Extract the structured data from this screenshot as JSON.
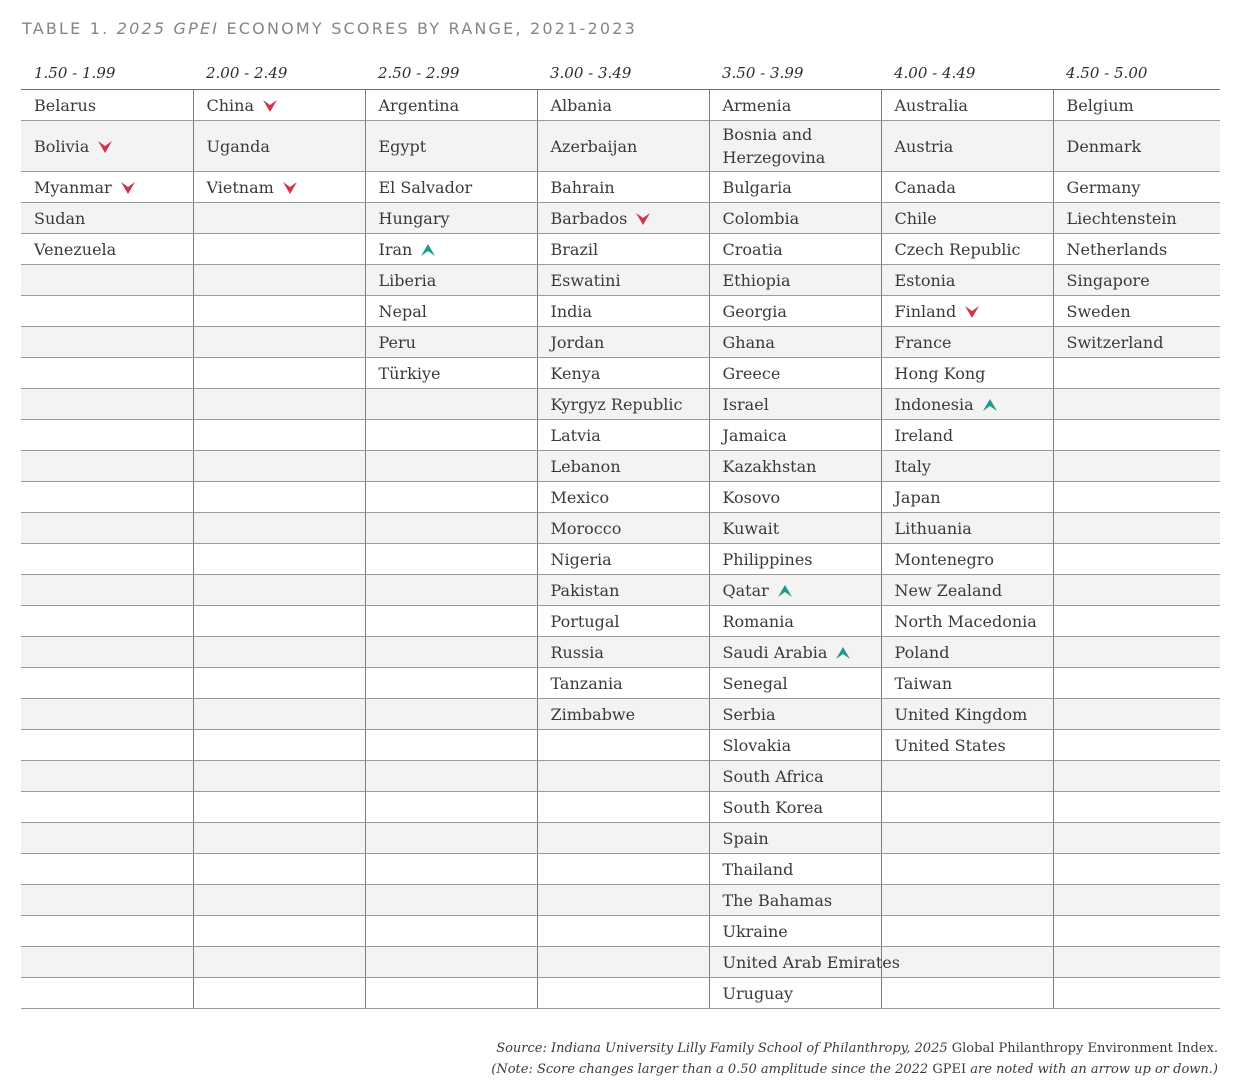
{
  "title": {
    "prefix": "TABLE 1. ",
    "italic": "2025 GPEI",
    "suffix": " ECONOMY SCORES BY RANGE, 2021-2023"
  },
  "colors": {
    "down_arrow": "#d0334e",
    "up_arrow": "#1f9a8a",
    "stripe": "#f3f3f3"
  },
  "icons": {
    "down": "down-arrow-icon",
    "up": "up-arrow-icon"
  },
  "table": {
    "headers": [
      "1.50 - 1.99",
      "2.00 - 2.49",
      "2.50 - 2.99",
      "3.00 - 3.49",
      "3.50 - 3.99",
      "4.00 - 4.49",
      "4.50 - 5.00"
    ],
    "rows": [
      [
        {
          "name": "Belarus"
        },
        {
          "name": "China",
          "change": "down"
        },
        {
          "name": "Argentina"
        },
        {
          "name": "Albania"
        },
        {
          "name": "Armenia"
        },
        {
          "name": "Australia"
        },
        {
          "name": "Belgium"
        }
      ],
      [
        {
          "name": "Bolivia",
          "change": "down"
        },
        {
          "name": "Uganda"
        },
        {
          "name": "Egypt"
        },
        {
          "name": "Azerbaijan"
        },
        {
          "name": "Bosnia and Herzegovina"
        },
        {
          "name": "Austria"
        },
        {
          "name": "Denmark"
        }
      ],
      [
        {
          "name": "Myanmar",
          "change": "down"
        },
        {
          "name": "Vietnam",
          "change": "down"
        },
        {
          "name": "El Salvador"
        },
        {
          "name": "Bahrain"
        },
        {
          "name": "Bulgaria"
        },
        {
          "name": "Canada"
        },
        {
          "name": "Germany"
        }
      ],
      [
        {
          "name": "Sudan"
        },
        {
          "name": ""
        },
        {
          "name": "Hungary"
        },
        {
          "name": "Barbados",
          "change": "down"
        },
        {
          "name": "Colombia"
        },
        {
          "name": "Chile"
        },
        {
          "name": "Liechtenstein"
        }
      ],
      [
        {
          "name": "Venezuela"
        },
        {
          "name": ""
        },
        {
          "name": "Iran",
          "change": "up"
        },
        {
          "name": "Brazil"
        },
        {
          "name": "Croatia"
        },
        {
          "name": "Czech Republic"
        },
        {
          "name": "Netherlands"
        }
      ],
      [
        {
          "name": ""
        },
        {
          "name": ""
        },
        {
          "name": "Liberia"
        },
        {
          "name": "Eswatini"
        },
        {
          "name": "Ethiopia"
        },
        {
          "name": "Estonia"
        },
        {
          "name": "Singapore"
        }
      ],
      [
        {
          "name": ""
        },
        {
          "name": ""
        },
        {
          "name": "Nepal"
        },
        {
          "name": "India"
        },
        {
          "name": "Georgia"
        },
        {
          "name": "Finland",
          "change": "down"
        },
        {
          "name": "Sweden"
        }
      ],
      [
        {
          "name": ""
        },
        {
          "name": ""
        },
        {
          "name": "Peru"
        },
        {
          "name": "Jordan"
        },
        {
          "name": "Ghana"
        },
        {
          "name": "France"
        },
        {
          "name": "Switzerland"
        }
      ],
      [
        {
          "name": ""
        },
        {
          "name": ""
        },
        {
          "name": "Türkiye"
        },
        {
          "name": "Kenya"
        },
        {
          "name": "Greece"
        },
        {
          "name": "Hong Kong"
        },
        {
          "name": ""
        }
      ],
      [
        {
          "name": ""
        },
        {
          "name": ""
        },
        {
          "name": ""
        },
        {
          "name": "Kyrgyz Republic"
        },
        {
          "name": "Israel"
        },
        {
          "name": "Indonesia",
          "change": "up"
        },
        {
          "name": ""
        }
      ],
      [
        {
          "name": ""
        },
        {
          "name": ""
        },
        {
          "name": ""
        },
        {
          "name": "Latvia"
        },
        {
          "name": "Jamaica"
        },
        {
          "name": "Ireland"
        },
        {
          "name": ""
        }
      ],
      [
        {
          "name": ""
        },
        {
          "name": ""
        },
        {
          "name": ""
        },
        {
          "name": "Lebanon"
        },
        {
          "name": "Kazakhstan"
        },
        {
          "name": "Italy"
        },
        {
          "name": ""
        }
      ],
      [
        {
          "name": ""
        },
        {
          "name": ""
        },
        {
          "name": ""
        },
        {
          "name": "Mexico"
        },
        {
          "name": "Kosovo"
        },
        {
          "name": "Japan"
        },
        {
          "name": ""
        }
      ],
      [
        {
          "name": ""
        },
        {
          "name": ""
        },
        {
          "name": ""
        },
        {
          "name": "Morocco"
        },
        {
          "name": "Kuwait"
        },
        {
          "name": "Lithuania"
        },
        {
          "name": ""
        }
      ],
      [
        {
          "name": ""
        },
        {
          "name": ""
        },
        {
          "name": ""
        },
        {
          "name": "Nigeria"
        },
        {
          "name": "Philippines"
        },
        {
          "name": "Montenegro"
        },
        {
          "name": ""
        }
      ],
      [
        {
          "name": ""
        },
        {
          "name": ""
        },
        {
          "name": ""
        },
        {
          "name": "Pakistan"
        },
        {
          "name": "Qatar",
          "change": "up"
        },
        {
          "name": "New Zealand"
        },
        {
          "name": ""
        }
      ],
      [
        {
          "name": ""
        },
        {
          "name": ""
        },
        {
          "name": ""
        },
        {
          "name": "Portugal"
        },
        {
          "name": "Romania"
        },
        {
          "name": "North Macedonia"
        },
        {
          "name": ""
        }
      ],
      [
        {
          "name": ""
        },
        {
          "name": ""
        },
        {
          "name": ""
        },
        {
          "name": "Russia"
        },
        {
          "name": "Saudi Arabia",
          "change": "up"
        },
        {
          "name": "Poland"
        },
        {
          "name": ""
        }
      ],
      [
        {
          "name": ""
        },
        {
          "name": ""
        },
        {
          "name": ""
        },
        {
          "name": "Tanzania"
        },
        {
          "name": "Senegal"
        },
        {
          "name": "Taiwan"
        },
        {
          "name": ""
        }
      ],
      [
        {
          "name": ""
        },
        {
          "name": ""
        },
        {
          "name": ""
        },
        {
          "name": "Zimbabwe"
        },
        {
          "name": "Serbia"
        },
        {
          "name": "United Kingdom"
        },
        {
          "name": ""
        }
      ],
      [
        {
          "name": ""
        },
        {
          "name": ""
        },
        {
          "name": ""
        },
        {
          "name": ""
        },
        {
          "name": "Slovakia"
        },
        {
          "name": "United States"
        },
        {
          "name": ""
        }
      ],
      [
        {
          "name": ""
        },
        {
          "name": ""
        },
        {
          "name": ""
        },
        {
          "name": ""
        },
        {
          "name": "South Africa"
        },
        {
          "name": ""
        },
        {
          "name": ""
        }
      ],
      [
        {
          "name": ""
        },
        {
          "name": ""
        },
        {
          "name": ""
        },
        {
          "name": ""
        },
        {
          "name": "South Korea"
        },
        {
          "name": ""
        },
        {
          "name": ""
        }
      ],
      [
        {
          "name": ""
        },
        {
          "name": ""
        },
        {
          "name": ""
        },
        {
          "name": ""
        },
        {
          "name": "Spain"
        },
        {
          "name": ""
        },
        {
          "name": ""
        }
      ],
      [
        {
          "name": ""
        },
        {
          "name": ""
        },
        {
          "name": ""
        },
        {
          "name": ""
        },
        {
          "name": "Thailand"
        },
        {
          "name": ""
        },
        {
          "name": ""
        }
      ],
      [
        {
          "name": ""
        },
        {
          "name": ""
        },
        {
          "name": ""
        },
        {
          "name": ""
        },
        {
          "name": "The Bahamas"
        },
        {
          "name": ""
        },
        {
          "name": ""
        }
      ],
      [
        {
          "name": ""
        },
        {
          "name": ""
        },
        {
          "name": ""
        },
        {
          "name": ""
        },
        {
          "name": "Ukraine"
        },
        {
          "name": ""
        },
        {
          "name": ""
        }
      ],
      [
        {
          "name": ""
        },
        {
          "name": ""
        },
        {
          "name": ""
        },
        {
          "name": ""
        },
        {
          "name": "United Arab Emirates"
        },
        {
          "name": ""
        },
        {
          "name": ""
        }
      ],
      [
        {
          "name": ""
        },
        {
          "name": ""
        },
        {
          "name": ""
        },
        {
          "name": ""
        },
        {
          "name": "Uruguay"
        },
        {
          "name": ""
        },
        {
          "name": ""
        }
      ]
    ]
  },
  "source": {
    "line1_prefix": "Source: Indiana University Lilly Family School of Philanthropy, 2025 ",
    "line1_upright": "Global Philanthropy Environment Index.",
    "line2_prefix": "(Note: Score changes larger than a 0.50 amplitude since the 2022 ",
    "line2_upright": "GPEI",
    "line2_suffix": " are noted with an arrow up or down.)"
  }
}
